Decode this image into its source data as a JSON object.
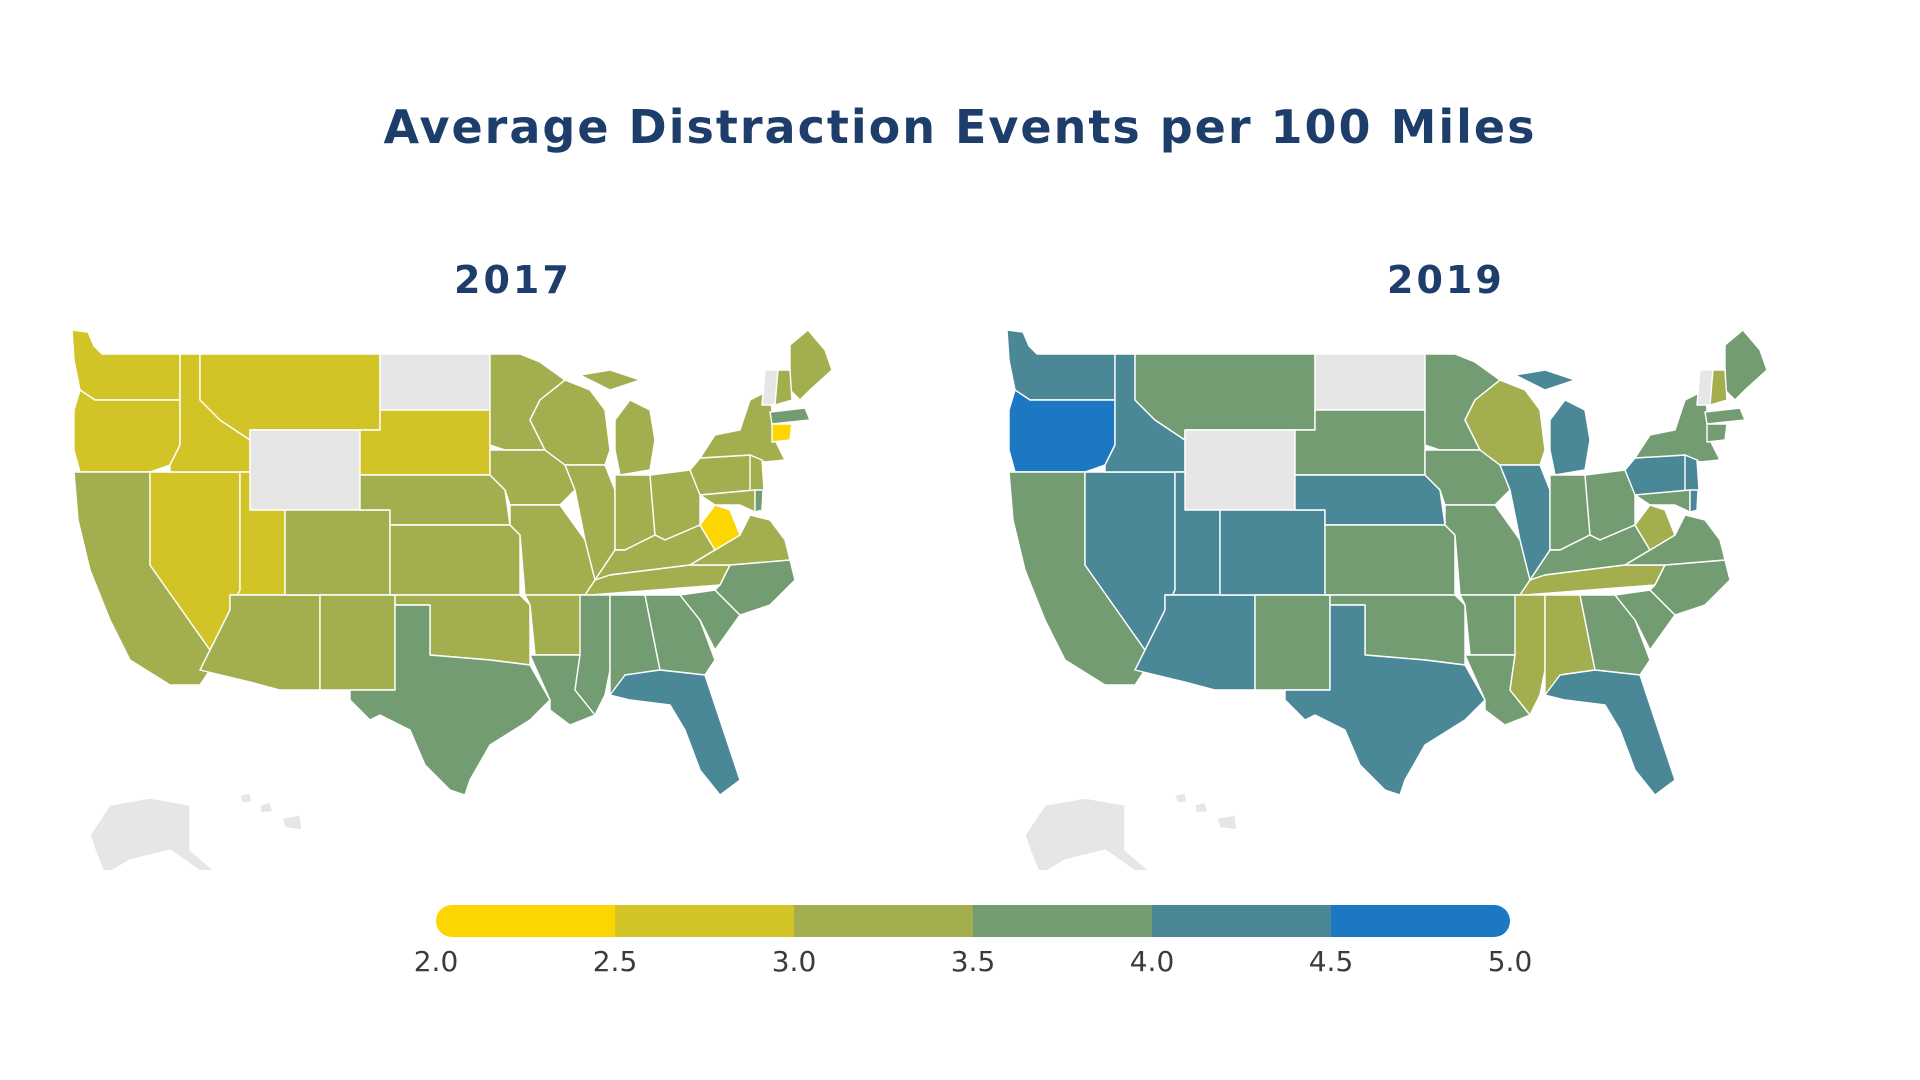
{
  "title": "Average Distraction Events per 100 Miles",
  "colors": {
    "no_data": "#e6e6e6",
    "title": "#1d3d6b",
    "scale": [
      "#fdd500",
      "#d2c327",
      "#a3af4f",
      "#749c73",
      "#4a8898",
      "#1c78c2"
    ]
  },
  "legend": {
    "ticks": [
      "2.0",
      "2.5",
      "3.0",
      "3.5",
      "4.0",
      "4.5",
      "5.0"
    ]
  },
  "maps": [
    {
      "year": "2017",
      "bins": {
        "WA": 1,
        "OR": 1,
        "CA": 2,
        "NV": 1,
        "ID": 1,
        "MT": 1,
        "WY": -1,
        "UT": 1,
        "AZ": 2,
        "CO": 2,
        "NM": 2,
        "ND": -1,
        "SD": 1,
        "NE": 2,
        "KS": 2,
        "OK": 2,
        "TX": 3,
        "MN": 2,
        "IA": 2,
        "MO": 2,
        "AR": 2,
        "LA": 3,
        "WI": 2,
        "IL": 2,
        "MI": 2,
        "IN": 2,
        "OH": 2,
        "KY": 2,
        "TN": 2,
        "MS": 3,
        "AL": 3,
        "GA": 3,
        "FL": 4,
        "SC": 3,
        "NC": 3,
        "VA": 2,
        "WV": 0,
        "PA": 2,
        "NY": 2,
        "ME": 2,
        "VT": -1,
        "NH": 2,
        "MA": 3,
        "CT": 0,
        "NJ": 2,
        "MD": 2,
        "DE": 3,
        "AK": -1,
        "HI": -1
      }
    },
    {
      "year": "2019",
      "bins": {
        "WA": 4,
        "OR": 5,
        "CA": 3,
        "NV": 4,
        "ID": 4,
        "MT": 3,
        "WY": -1,
        "UT": 4,
        "AZ": 4,
        "CO": 4,
        "NM": 3,
        "ND": -1,
        "SD": 3,
        "NE": 4,
        "KS": 3,
        "OK": 3,
        "TX": 4,
        "MN": 3,
        "IA": 3,
        "MO": 3,
        "AR": 3,
        "LA": 3,
        "WI": 2,
        "IL": 4,
        "MI": 4,
        "IN": 3,
        "OH": 3,
        "KY": 3,
        "TN": 2,
        "MS": 2,
        "AL": 2,
        "GA": 3,
        "FL": 4,
        "SC": 3,
        "NC": 3,
        "VA": 3,
        "WV": 2,
        "PA": 4,
        "NY": 3,
        "ME": 3,
        "VT": -1,
        "NH": 2,
        "MA": 3,
        "CT": 3,
        "NJ": 4,
        "MD": 3,
        "DE": 4,
        "AK": -1,
        "HI": -1
      }
    }
  ]
}
